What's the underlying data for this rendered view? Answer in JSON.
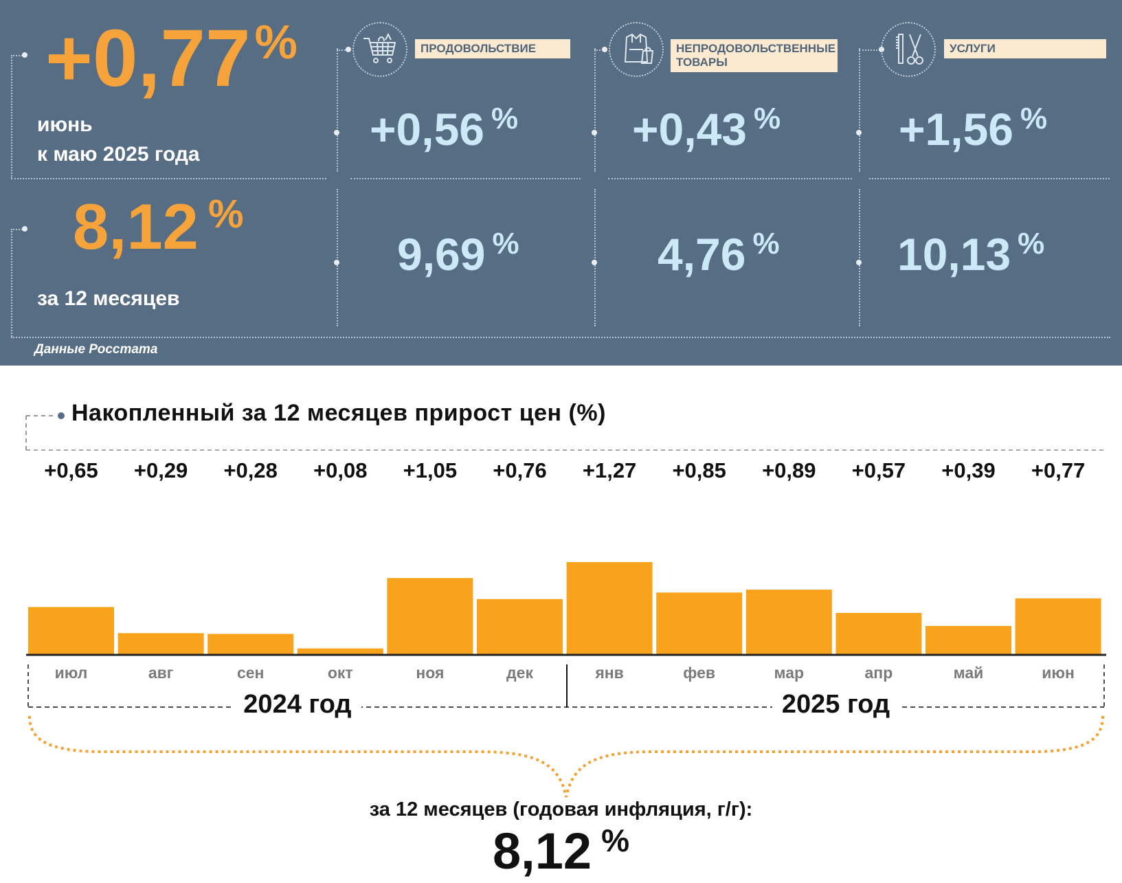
{
  "top": {
    "monthly": {
      "value": "+0,77",
      "pct": "%",
      "label_line1": "июнь",
      "label_line2": "к маю 2025 года"
    },
    "annual": {
      "value": "8,12",
      "pct": "%",
      "label": "за 12 месяцев"
    },
    "categories": [
      {
        "name_lines": [
          "ПРОДОВОЛЬСТВИЕ"
        ],
        "icon": "shopping-cart-icon",
        "monthly": "+0,56",
        "annual": "9,69",
        "pct": "%"
      },
      {
        "name_lines": [
          "НЕПРОДОВОЛЬСТВЕННЫЕ",
          "ТОВАРЫ"
        ],
        "icon": "clothing-bag-icon",
        "monthly": "+0,43",
        "annual": "4,76",
        "pct": "%"
      },
      {
        "name_lines": [
          "УСЛУГИ"
        ],
        "icon": "comb-scissors-icon",
        "monthly": "+1,56",
        "annual": "10,13",
        "pct": "%"
      }
    ],
    "source": "Данные Росстата"
  },
  "colors": {
    "panel_bg": "#566d83",
    "accent_orange": "#f6a33c",
    "bar_orange": "#f9a21b",
    "value_blue": "#cde8f7",
    "tag_bg": "#fbe9d0"
  },
  "chart_data": {
    "type": "bar",
    "title": "Накопленный за 12 месяцев прирост цен (%)",
    "categories": [
      "июл",
      "авг",
      "сен",
      "окт",
      "ноя",
      "дек",
      "янв",
      "фев",
      "мар",
      "апр",
      "май",
      "июн"
    ],
    "values": [
      0.65,
      0.29,
      0.28,
      0.08,
      1.05,
      0.76,
      1.27,
      0.85,
      0.89,
      0.57,
      0.39,
      0.77
    ],
    "value_labels": [
      "+0,65",
      "+0,29",
      "+0,28",
      "+0,08",
      "+1,05",
      "+0,76",
      "+1,27",
      "+0,85",
      "+0,89",
      "+0,57",
      "+0,39",
      "+0,77"
    ],
    "year_groups": [
      {
        "label": "2024 год",
        "start": 0,
        "end": 5
      },
      {
        "label": "2025 год",
        "start": 6,
        "end": 11
      }
    ],
    "summary_label": "за 12 месяцев (годовая инфляция, г/г):",
    "summary_value": "8,12",
    "summary_pct": "%",
    "ylim": [
      0,
      1.27
    ],
    "grid": false,
    "legend": "none"
  }
}
